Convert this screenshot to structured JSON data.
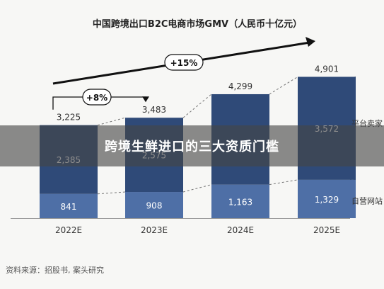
{
  "banner": {
    "text": "跨境生鲜进口的三大资质门槛"
  },
  "source": "资料来源：招股书, 案头研究",
  "colors": {
    "platform": "#2f4a78",
    "selfrun": "#4e6fa6",
    "text": "#333333",
    "grid": "#d9d9d9"
  },
  "chart_data": {
    "type": "bar",
    "stacked": true,
    "title": "中国跨境出口B2C电商市场GMV（人民币十亿元）",
    "categories": [
      "2022E",
      "2023E",
      "2024E",
      "2025E"
    ],
    "series": [
      {
        "name": "自营网站",
        "values": [
          841,
          908,
          1163,
          1329
        ]
      },
      {
        "name": "平台卖家",
        "values": [
          2385,
          2575,
          3136,
          3572
        ]
      }
    ],
    "totals": [
      3225,
      3483,
      4299,
      4901
    ],
    "display_labels": {
      "totals": [
        "3,225",
        "3,483",
        "4,299",
        "4,901"
      ],
      "自营网站": [
        "841",
        "908",
        "1,163",
        "1,329"
      ],
      "平台卖家": [
        "2,385",
        "2,575",
        "",
        "3,572"
      ]
    },
    "annotations": [
      "+8%",
      "+15%"
    ],
    "ylim": [
      0,
      5600
    ]
  }
}
